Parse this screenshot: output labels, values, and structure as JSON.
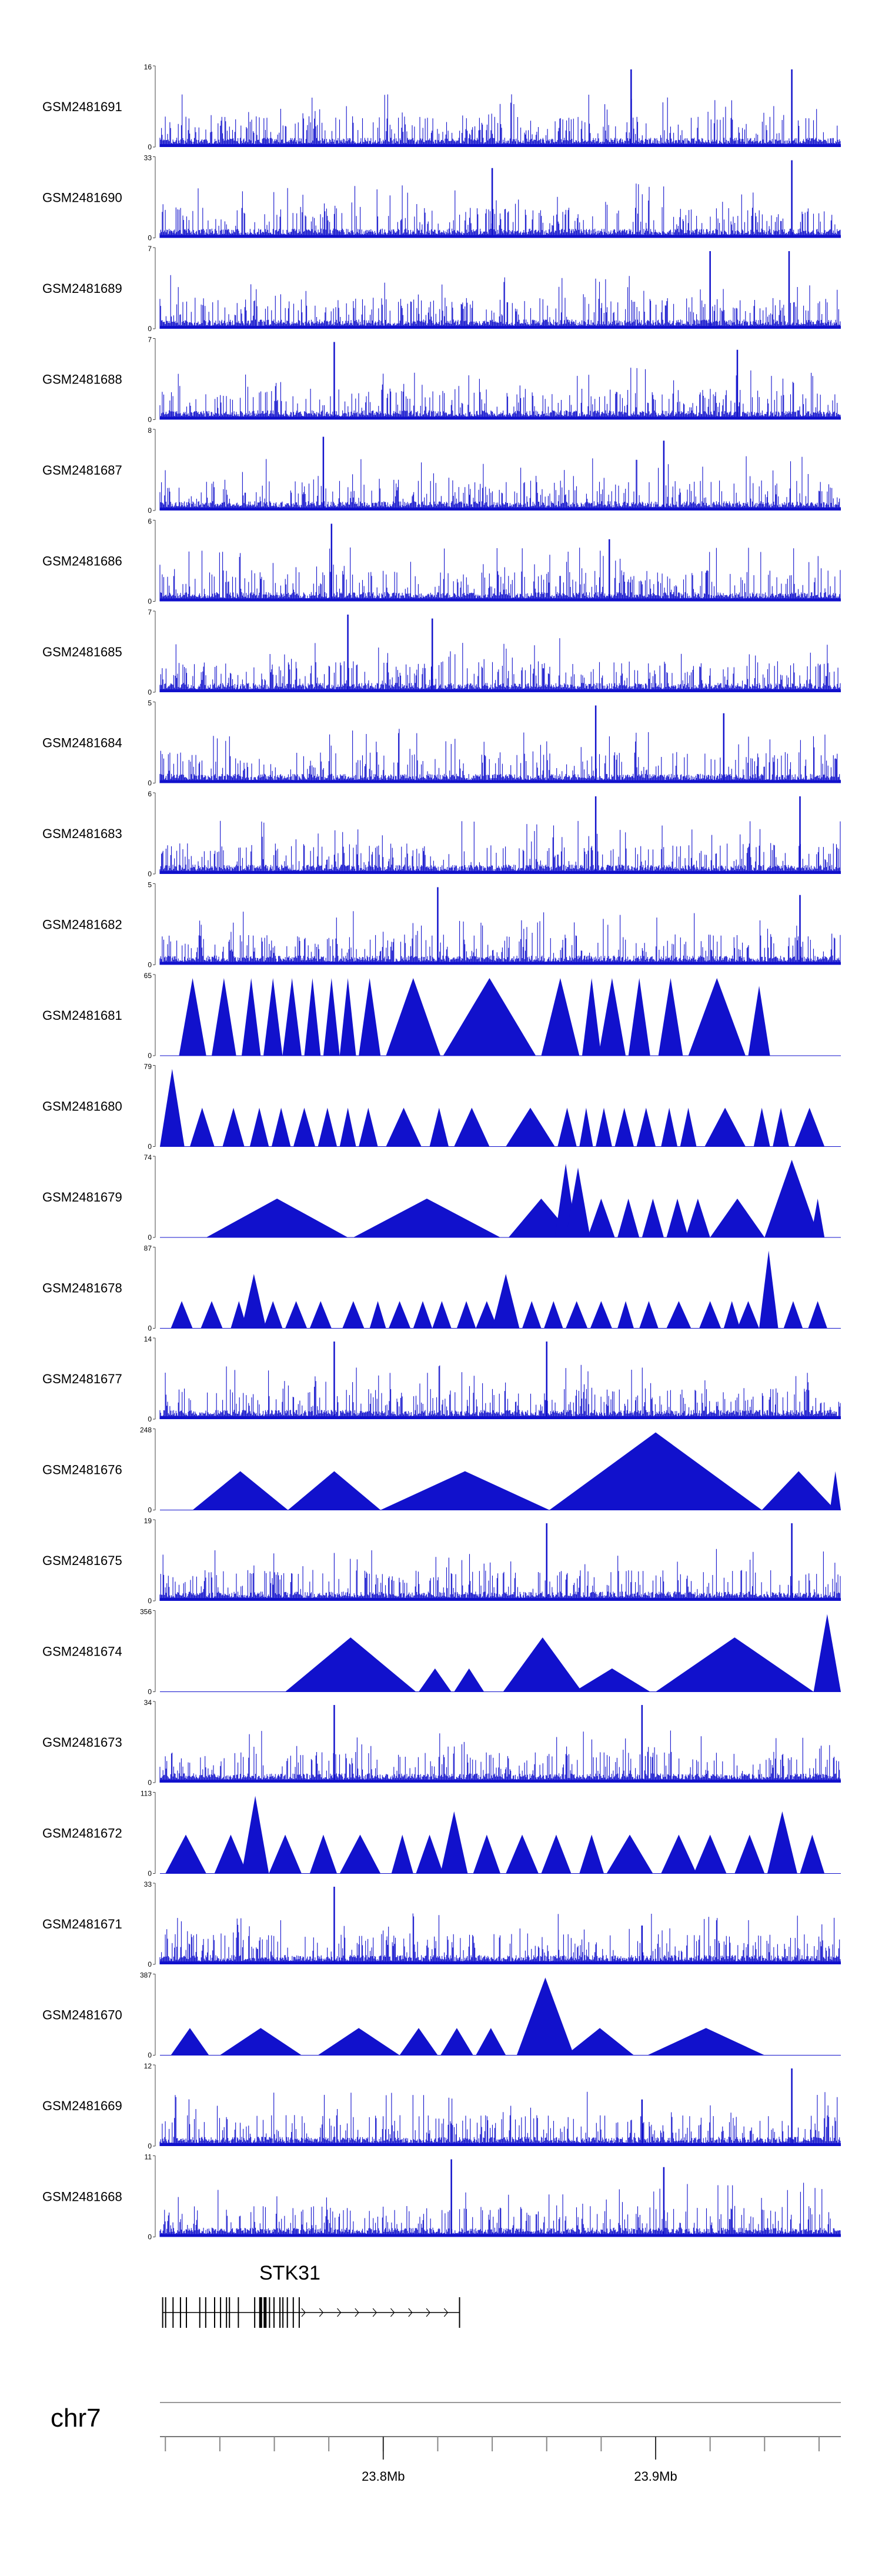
{
  "chart_data": {
    "type": "genome-tracks",
    "chromosome": "chr7",
    "region": [
      23.718,
      23.968
    ],
    "color": "#1111cc",
    "tracks": [
      {
        "name": "GSM2481691",
        "ymax": "16",
        "style": "dense",
        "spikes": [
          [
            23.891,
            1.0
          ],
          [
            23.95,
            1.0
          ]
        ]
      },
      {
        "name": "GSM2481690",
        "ymax": "33",
        "style": "dense",
        "spikes": [
          [
            23.84,
            0.9
          ],
          [
            23.95,
            1.0
          ]
        ]
      },
      {
        "name": "GSM2481689",
        "ymax": "7",
        "style": "dense",
        "spikes": [
          [
            23.92,
            1.0
          ],
          [
            23.949,
            1.0
          ]
        ]
      },
      {
        "name": "GSM2481688",
        "ymax": "7",
        "style": "dense",
        "spikes": [
          [
            23.782,
            1.0
          ],
          [
            23.93,
            0.9
          ]
        ]
      },
      {
        "name": "GSM2481687",
        "ymax": "8",
        "style": "dense",
        "spikes": [
          [
            23.778,
            0.95
          ],
          [
            23.903,
            0.9
          ]
        ]
      },
      {
        "name": "GSM2481686",
        "ymax": "6",
        "style": "dense",
        "spikes": [
          [
            23.781,
            1.0
          ],
          [
            23.883,
            0.8
          ]
        ]
      },
      {
        "name": "GSM2481685",
        "ymax": "7",
        "style": "dense",
        "spikes": [
          [
            23.787,
            1.0
          ],
          [
            23.818,
            0.95
          ]
        ]
      },
      {
        "name": "GSM2481684",
        "ymax": "5",
        "style": "dense",
        "spikes": [
          [
            23.878,
            1.0
          ],
          [
            23.925,
            0.9
          ]
        ]
      },
      {
        "name": "GSM2481683",
        "ymax": "6",
        "style": "dense",
        "spikes": [
          [
            23.878,
            1.0
          ],
          [
            23.953,
            1.0
          ]
        ]
      },
      {
        "name": "GSM2481682",
        "ymax": "5",
        "style": "dense",
        "spikes": [
          [
            23.82,
            1.0
          ],
          [
            23.953,
            0.9
          ]
        ]
      },
      {
        "name": "GSM2481681",
        "ymax": "65",
        "style": "triangles",
        "triangles": [
          [
            23.725,
            23.735,
            1.0
          ],
          [
            23.737,
            23.746,
            1.0
          ],
          [
            23.748,
            23.755,
            1.0
          ],
          [
            23.756,
            23.763,
            1.0
          ],
          [
            23.763,
            23.77,
            1.0
          ],
          [
            23.771,
            23.777,
            1.0
          ],
          [
            23.778,
            23.784,
            1.0
          ],
          [
            23.784,
            23.79,
            1.0
          ],
          [
            23.791,
            23.799,
            1.0
          ],
          [
            23.801,
            23.821,
            1.0
          ],
          [
            23.822,
            23.856,
            1.0
          ],
          [
            23.858,
            23.872,
            1.0
          ],
          [
            23.873,
            23.88,
            1.0
          ],
          [
            23.879,
            23.889,
            1.0
          ],
          [
            23.89,
            23.898,
            1.0
          ],
          [
            23.901,
            23.91,
            1.0
          ],
          [
            23.912,
            23.933,
            1.0
          ],
          [
            23.934,
            23.942,
            0.9
          ]
        ]
      },
      {
        "name": "GSM2481680",
        "ymax": "79",
        "style": "triangles",
        "triangles": [
          [
            23.718,
            23.727,
            1.0
          ],
          [
            23.729,
            23.738,
            0.5
          ],
          [
            23.741,
            23.749,
            0.5
          ],
          [
            23.751,
            23.758,
            0.5
          ],
          [
            23.759,
            23.766,
            0.5
          ],
          [
            23.767,
            23.775,
            0.5
          ],
          [
            23.776,
            23.783,
            0.5
          ],
          [
            23.784,
            23.79,
            0.5
          ],
          [
            23.791,
            23.798,
            0.5
          ],
          [
            23.801,
            23.814,
            0.5
          ],
          [
            23.817,
            23.824,
            0.5
          ],
          [
            23.826,
            23.839,
            0.5
          ],
          [
            23.845,
            23.863,
            0.5
          ],
          [
            23.864,
            23.871,
            0.5
          ],
          [
            23.872,
            23.877,
            0.5
          ],
          [
            23.878,
            23.884,
            0.5
          ],
          [
            23.885,
            23.892,
            0.5
          ],
          [
            23.893,
            23.9,
            0.5
          ],
          [
            23.902,
            23.908,
            0.5
          ],
          [
            23.909,
            23.915,
            0.5
          ],
          [
            23.918,
            23.933,
            0.5
          ],
          [
            23.936,
            23.942,
            0.5
          ],
          [
            23.943,
            23.949,
            0.5
          ],
          [
            23.951,
            23.962,
            0.5
          ]
        ]
      },
      {
        "name": "GSM2481679",
        "ymax": "74",
        "style": "triangles",
        "triangles": [
          [
            23.735,
            23.787,
            0.5
          ],
          [
            23.789,
            23.843,
            0.5
          ],
          [
            23.846,
            23.87,
            0.5
          ],
          [
            23.863,
            23.871,
            0.95
          ],
          [
            23.867,
            23.876,
            0.9
          ],
          [
            23.875,
            23.885,
            0.5
          ],
          [
            23.886,
            23.894,
            0.5
          ],
          [
            23.895,
            23.903,
            0.5
          ],
          [
            23.904,
            23.912,
            0.5
          ],
          [
            23.911,
            23.92,
            0.5
          ],
          [
            23.92,
            23.94,
            0.5
          ],
          [
            23.94,
            23.96,
            1.0
          ],
          [
            23.957,
            23.962,
            0.5
          ]
        ]
      },
      {
        "name": "GSM2481678",
        "ymax": "87",
        "style": "triangles",
        "triangles": [
          [
            23.722,
            23.73,
            0.35
          ],
          [
            23.733,
            23.741,
            0.35
          ],
          [
            23.744,
            23.75,
            0.35
          ],
          [
            23.748,
            23.757,
            0.7
          ],
          [
            23.756,
            23.763,
            0.35
          ],
          [
            23.764,
            23.772,
            0.35
          ],
          [
            23.773,
            23.781,
            0.35
          ],
          [
            23.785,
            23.793,
            0.35
          ],
          [
            23.795,
            23.801,
            0.35
          ],
          [
            23.802,
            23.81,
            0.35
          ],
          [
            23.811,
            23.818,
            0.35
          ],
          [
            23.818,
            23.825,
            0.35
          ],
          [
            23.827,
            23.834,
            0.35
          ],
          [
            23.834,
            23.842,
            0.35
          ],
          [
            23.84,
            23.85,
            0.7
          ],
          [
            23.851,
            23.858,
            0.35
          ],
          [
            23.859,
            23.866,
            0.35
          ],
          [
            23.867,
            23.875,
            0.35
          ],
          [
            23.876,
            23.884,
            0.35
          ],
          [
            23.886,
            23.892,
            0.35
          ],
          [
            23.894,
            23.901,
            0.35
          ],
          [
            23.904,
            23.913,
            0.35
          ],
          [
            23.916,
            23.924,
            0.35
          ],
          [
            23.925,
            23.931,
            0.35
          ],
          [
            23.93,
            23.938,
            0.35
          ],
          [
            23.938,
            23.945,
            1.0
          ],
          [
            23.947,
            23.954,
            0.35
          ],
          [
            23.956,
            23.963,
            0.35
          ]
        ]
      },
      {
        "name": "GSM2481677",
        "ymax": "14",
        "style": "dense",
        "spikes": [
          [
            23.782,
            1.0
          ],
          [
            23.86,
            1.0
          ]
        ]
      },
      {
        "name": "GSM2481676",
        "ymax": "248",
        "style": "triangles",
        "triangles": [
          [
            23.73,
            23.765,
            0.5
          ],
          [
            23.765,
            23.799,
            0.5
          ],
          [
            23.799,
            23.861,
            0.5
          ],
          [
            23.861,
            23.939,
            1.0
          ],
          [
            23.939,
            23.966,
            0.5
          ],
          [
            23.964,
            23.968,
            0.5
          ]
        ]
      },
      {
        "name": "GSM2481675",
        "ymax": "19",
        "style": "dense",
        "spikes": [
          [
            23.86,
            1.0
          ],
          [
            23.95,
            1.0
          ]
        ]
      },
      {
        "name": "GSM2481674",
        "ymax": "356",
        "style": "triangles",
        "triangles": [
          [
            23.764,
            23.812,
            0.7
          ],
          [
            23.813,
            23.825,
            0.3
          ],
          [
            23.826,
            23.837,
            0.3
          ],
          [
            23.844,
            23.873,
            0.7
          ],
          [
            23.87,
            23.898,
            0.3
          ],
          [
            23.9,
            23.958,
            0.7
          ],
          [
            23.958,
            23.968,
            1.0
          ]
        ]
      },
      {
        "name": "GSM2481673",
        "ymax": "34",
        "style": "dense",
        "spikes": [
          [
            23.782,
            1.0
          ],
          [
            23.895,
            1.0
          ]
        ]
      },
      {
        "name": "GSM2481672",
        "ymax": "113",
        "style": "triangles",
        "triangles": [
          [
            23.72,
            23.735,
            0.5
          ],
          [
            23.738,
            23.75,
            0.5
          ],
          [
            23.748,
            23.758,
            1.0
          ],
          [
            23.758,
            23.77,
            0.5
          ],
          [
            23.773,
            23.783,
            0.5
          ],
          [
            23.784,
            23.799,
            0.5
          ],
          [
            23.803,
            23.811,
            0.5
          ],
          [
            23.812,
            23.822,
            0.5
          ],
          [
            23.821,
            23.831,
            0.8
          ],
          [
            23.833,
            23.843,
            0.5
          ],
          [
            23.845,
            23.857,
            0.5
          ],
          [
            23.858,
            23.869,
            0.5
          ],
          [
            23.872,
            23.881,
            0.5
          ],
          [
            23.882,
            23.899,
            0.5
          ],
          [
            23.902,
            23.915,
            0.5
          ],
          [
            23.914,
            23.926,
            0.5
          ],
          [
            23.929,
            23.94,
            0.5
          ],
          [
            23.941,
            23.952,
            0.8
          ],
          [
            23.953,
            23.962,
            0.5
          ]
        ]
      },
      {
        "name": "GSM2481671",
        "ymax": "33",
        "style": "dense",
        "spikes": [
          [
            23.782,
            1.0
          ],
          [
            23.895,
            0.5
          ]
        ]
      },
      {
        "name": "GSM2481670",
        "ymax": "387",
        "style": "triangles",
        "triangles": [
          [
            23.722,
            23.736,
            0.35
          ],
          [
            23.74,
            23.77,
            0.35
          ],
          [
            23.776,
            23.806,
            0.35
          ],
          [
            23.806,
            23.82,
            0.35
          ],
          [
            23.821,
            23.833,
            0.35
          ],
          [
            23.834,
            23.845,
            0.35
          ],
          [
            23.849,
            23.87,
            1.0
          ],
          [
            23.867,
            23.892,
            0.35
          ],
          [
            23.897,
            23.94,
            0.35
          ]
        ]
      },
      {
        "name": "GSM2481669",
        "ymax": "12",
        "style": "dense",
        "spikes": [
          [
            23.895,
            0.6
          ],
          [
            23.95,
            1.0
          ]
        ]
      },
      {
        "name": "GSM2481668",
        "ymax": "11",
        "style": "dense",
        "spikes": [
          [
            23.825,
            1.0
          ],
          [
            23.903,
            0.9
          ]
        ]
      }
    ],
    "genes": [
      {
        "name": "STK31",
        "start": 23.719,
        "end": 23.828,
        "strand": "+"
      }
    ],
    "axis": {
      "major_ticks": [
        23.8,
        23.9
      ],
      "major_labels": [
        "23.8Mb",
        "23.9Mb"
      ],
      "minor_step": 0.02
    }
  }
}
